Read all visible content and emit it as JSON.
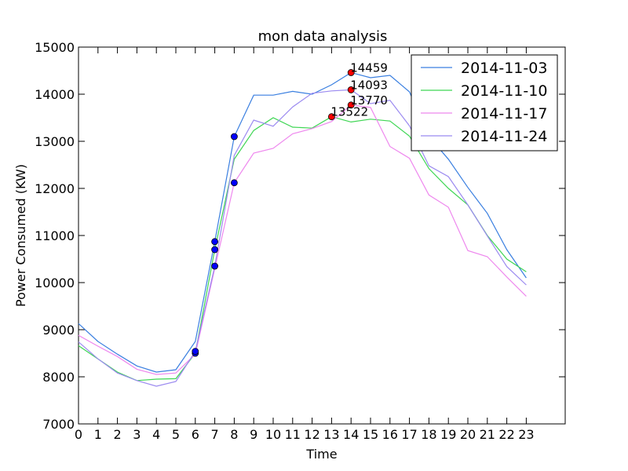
{
  "chart_data": {
    "type": "line",
    "title": "mon data analysis",
    "xlabel": "Time",
    "ylabel": "Power Consumed (KW)",
    "xlim": [
      0,
      25
    ],
    "ylim": [
      7000,
      15000
    ],
    "x_ticks": [
      0,
      1,
      2,
      3,
      4,
      5,
      6,
      7,
      8,
      9,
      10,
      11,
      12,
      13,
      14,
      15,
      16,
      17,
      18,
      19,
      20,
      21,
      22,
      23
    ],
    "y_ticks": [
      7000,
      8000,
      9000,
      10000,
      11000,
      12000,
      13000,
      14000,
      15000
    ],
    "grid": false,
    "legend_position": "top-right",
    "x": [
      0,
      1,
      2,
      3,
      4,
      5,
      6,
      7,
      8,
      9,
      10,
      11,
      12,
      13,
      14,
      15,
      16,
      17,
      18,
      19,
      20,
      21,
      22,
      23
    ],
    "series": [
      {
        "name": "2014-11-03",
        "color": "#3a7fe0",
        "values": [
          9130,
          8750,
          8480,
          8230,
          8100,
          8150,
          8750,
          10870,
          13100,
          13980,
          13980,
          14060,
          14000,
          14200,
          14459,
          14350,
          14400,
          14050,
          13100,
          12620,
          12020,
          11470,
          10700,
          10100
        ]
      },
      {
        "name": "2014-11-10",
        "color": "#3fd654",
        "values": [
          8660,
          8380,
          8100,
          7920,
          7950,
          7960,
          8500,
          10700,
          12620,
          13230,
          13500,
          13300,
          13280,
          13522,
          13410,
          13470,
          13430,
          13110,
          12420,
          12000,
          11650,
          11000,
          10500,
          10230
        ]
      },
      {
        "name": "2014-11-17",
        "color": "#ee88ee",
        "values": [
          8880,
          8650,
          8430,
          8160,
          8050,
          8080,
          8480,
          10300,
          12120,
          12750,
          12850,
          13160,
          13270,
          13420,
          13770,
          13720,
          12890,
          12640,
          11860,
          11600,
          10680,
          10550,
          10120,
          9710
        ]
      },
      {
        "name": "2014-11-24",
        "color": "#9b8af0",
        "values": [
          8740,
          8380,
          8080,
          7920,
          7800,
          7900,
          8540,
          10350,
          12700,
          13450,
          13320,
          13730,
          14020,
          14070,
          14093,
          13800,
          13870,
          13330,
          12480,
          12250,
          11650,
          10990,
          10340,
          9950
        ]
      }
    ],
    "min_markers": [
      {
        "x": 6,
        "y": 8500
      },
      {
        "x": 6,
        "y": 8540
      },
      {
        "x": 7,
        "y": 10350
      },
      {
        "x": 7,
        "y": 10700
      },
      {
        "x": 7,
        "y": 10870
      },
      {
        "x": 8,
        "y": 12120
      },
      {
        "x": 8,
        "y": 13100
      }
    ],
    "max_markers": [
      {
        "x": 14,
        "y": 14459,
        "label": "14459"
      },
      {
        "x": 14,
        "y": 14093,
        "label": "14093"
      },
      {
        "x": 14,
        "y": 13770,
        "label": "13770"
      },
      {
        "x": 13,
        "y": 13522,
        "label": "13522"
      }
    ],
    "min_marker_color": "#0000ff",
    "max_marker_color": "#ff0000"
  }
}
